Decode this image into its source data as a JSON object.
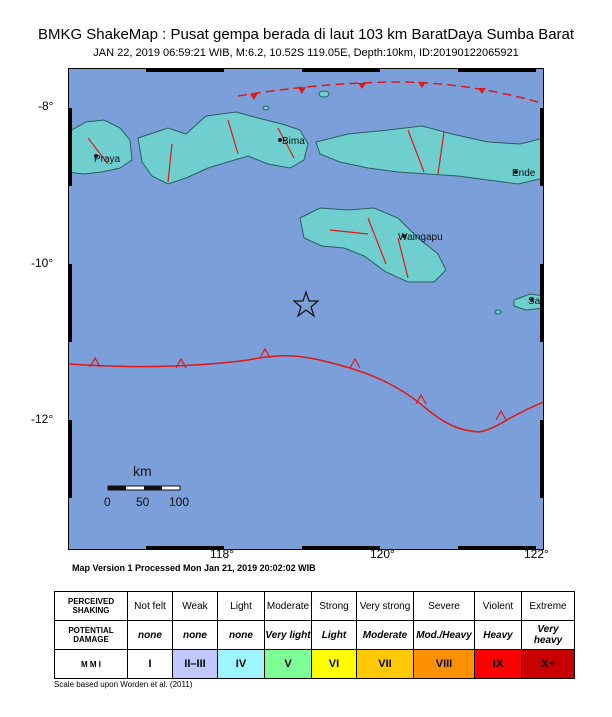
{
  "header": {
    "title": "BMKG ShakeMap : Pusat gempa berada di laut 103 km BaratDaya Sumba Barat",
    "subtitle": "JAN 22, 2019 06:59:21 WIB, M:6.2, 10.52S 119.05E, Depth:10km, ID:20190122065921"
  },
  "map": {
    "lat_ticks": [
      "-8°",
      "-10°",
      "-12°"
    ],
    "lon_ticks": [
      "118°",
      "120°",
      "122°"
    ],
    "places": [
      "Praya",
      "Bima",
      "Ende",
      "Waingapu",
      "Sav"
    ],
    "scale_bar": {
      "unit": "km",
      "ticks": [
        "0",
        "50",
        "100"
      ]
    },
    "epicenter_marker": "star-icon",
    "colors": {
      "sea": "#7b9fd9",
      "land": "#6fcfcf",
      "fault": "#e01818"
    }
  },
  "version_note": "Map Version 1 Processed Mon Jan 21, 2019 20:02:02 WIB",
  "legend": {
    "row_headers": {
      "shaking": "PERCEIVED SHAKING",
      "damage": "POTENTIAL DAMAGE",
      "mmi": "M M I"
    },
    "columns": [
      {
        "shaking": "Not felt",
        "damage": "none",
        "mmi": "I",
        "color": "#ffffff"
      },
      {
        "shaking": "Weak",
        "damage": "none",
        "mmi": "II–III",
        "color": "#bfc9ff"
      },
      {
        "shaking": "Light",
        "damage": "none",
        "mmi": "IV",
        "color": "#9ff5ff"
      },
      {
        "shaking": "Moderate",
        "damage": "Very light",
        "mmi": "V",
        "color": "#7dff95"
      },
      {
        "shaking": "Strong",
        "damage": "Light",
        "mmi": "VI",
        "color": "#ffff00"
      },
      {
        "shaking": "Very strong",
        "damage": "Moderate",
        "mmi": "VII",
        "color": "#ffc800"
      },
      {
        "shaking": "Severe",
        "damage": "Mod./Heavy",
        "mmi": "VIII",
        "color": "#ff9100"
      },
      {
        "shaking": "Violent",
        "damage": "Heavy",
        "mmi": "IX",
        "color": "#ff0000"
      },
      {
        "shaking": "Extreme",
        "damage": "Very heavy",
        "mmi": "X+",
        "color": "#c80000"
      }
    ]
  },
  "scale_note": "Scale based upon Worden et al. (2011)"
}
